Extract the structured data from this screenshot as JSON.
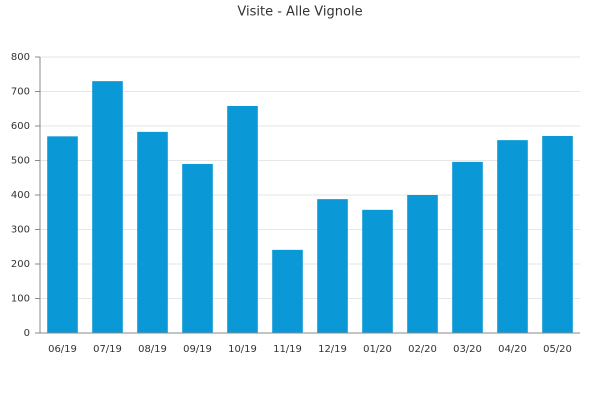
{
  "chart_data": {
    "type": "bar",
    "title": "Visite - Alle Vignole",
    "categories": [
      "06/19",
      "07/19",
      "08/19",
      "09/19",
      "10/19",
      "11/19",
      "12/19",
      "01/20",
      "02/20",
      "03/20",
      "04/20",
      "05/20"
    ],
    "values": [
      570,
      730,
      583,
      490,
      658,
      241,
      388,
      357,
      400,
      496,
      559,
      571
    ],
    "color": "#0a99d6",
    "ylim": [
      0,
      800
    ],
    "yticks": [
      0,
      100,
      200,
      300,
      400,
      500,
      600,
      700,
      800
    ],
    "grid": true
  }
}
